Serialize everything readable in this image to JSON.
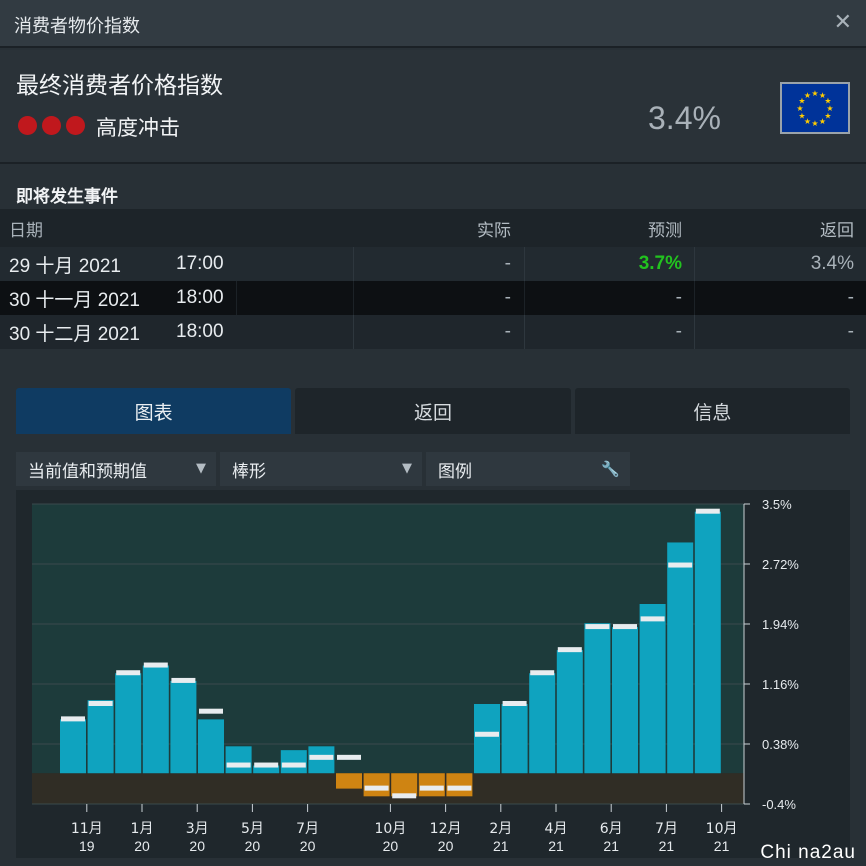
{
  "window": {
    "title": "消费者物价指数",
    "close_icon": "close-icon"
  },
  "summary": {
    "indicator": "最终消费者价格指数",
    "impact_label": "高度冲击",
    "impact_color": "#c0181d",
    "impact_dots": 3,
    "value": "3.4%",
    "flag_icon": "eu-flag-icon"
  },
  "events": {
    "title": "即将发生事件",
    "headers": {
      "date": "日期",
      "actual": "实际",
      "forecast": "预测",
      "previous": "返回"
    },
    "rows": [
      {
        "date": "29 十月 2021",
        "time": "17:00",
        "actual": "-",
        "forecast": "3.7%",
        "previous": "3.4%"
      },
      {
        "date": "30 十一月 2021",
        "time": "18:00",
        "actual": "-",
        "forecast": "-",
        "previous": "-"
      },
      {
        "date": "30 十二月 2021",
        "time": "18:00",
        "actual": "-",
        "forecast": "-",
        "previous": "-"
      }
    ]
  },
  "tabs": [
    "图表",
    "返回",
    "信息"
  ],
  "toolbar": {
    "mode": "当前值和预期值",
    "chart_type": "棒形",
    "legend": "图例"
  },
  "colors": {
    "positive": "#0fa3bf",
    "negative": "#cf8412",
    "expected": "#e8ecef",
    "accent": "#0f3b62",
    "forecast_green": "#22c21f"
  },
  "chart_data": {
    "type": "bar",
    "ylim": [
      -0.4,
      3.5
    ],
    "y_ticks": [
      "3.5%",
      "2.72%",
      "1.94%",
      "1.16%",
      "0.38%",
      "-0.4%"
    ],
    "x_ticks": [
      {
        "month": "11月",
        "year": "19",
        "index": 1
      },
      {
        "month": "1月",
        "year": "20",
        "index": 3
      },
      {
        "month": "3月",
        "year": "20",
        "index": 5
      },
      {
        "month": "5月",
        "year": "20",
        "index": 7
      },
      {
        "month": "7月",
        "year": "20",
        "index": 9
      },
      {
        "month": "10月",
        "year": "20",
        "index": 12
      },
      {
        "month": "12月",
        "year": "20",
        "index": 14
      },
      {
        "month": "2月",
        "year": "21",
        "index": 16
      },
      {
        "month": "4月",
        "year": "21",
        "index": 18
      },
      {
        "month": "6月",
        "year": "21",
        "index": 20
      },
      {
        "month": "7月",
        "year": "21",
        "index": 22
      },
      {
        "month": "10月",
        "year": "21",
        "index": 24
      }
    ],
    "series": [
      {
        "name": "当前值",
        "values": [
          0.7,
          0.95,
          1.3,
          1.4,
          1.2,
          0.7,
          0.35,
          0.1,
          0.3,
          0.35,
          -0.2,
          -0.3,
          -0.3,
          -0.3,
          -0.3,
          0.9,
          0.9,
          1.3,
          1.6,
          1.95,
          1.9,
          2.2,
          3.0,
          3.4
        ]
      },
      {
        "name": "预期值",
        "values": [
          0.7,
          0.9,
          1.3,
          1.4,
          1.2,
          0.8,
          0.1,
          0.1,
          0.1,
          0.2,
          0.2,
          -0.2,
          -0.3,
          -0.2,
          -0.2,
          0.5,
          0.9,
          1.3,
          1.6,
          1.9,
          1.9,
          2.0,
          2.7,
          3.4
        ]
      }
    ]
  },
  "watermark": "Chi na2au"
}
